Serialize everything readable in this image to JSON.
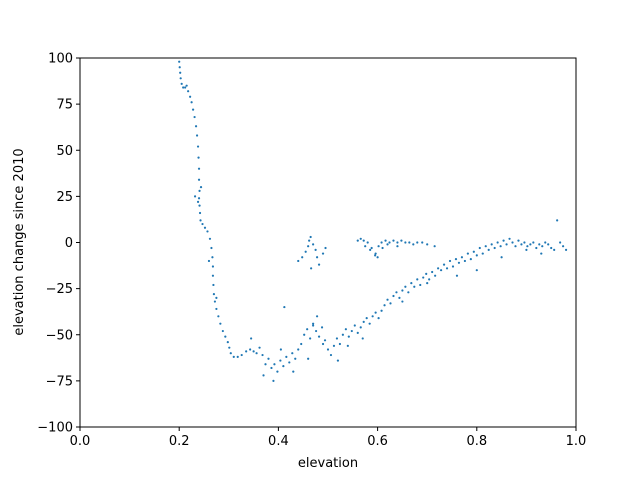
{
  "chart_data": {
    "type": "scatter",
    "title": "",
    "xlabel": "elevation",
    "ylabel": "elevation change since 2010",
    "xlim": [
      0.0,
      1.0
    ],
    "ylim": [
      -100,
      100
    ],
    "xticks": [
      "0.0",
      "0.2",
      "0.4",
      "0.6",
      "0.8",
      "1.0"
    ],
    "yticks": [
      "−100",
      "−75",
      "−50",
      "−25",
      "0",
      "25",
      "50",
      "75",
      "100"
    ],
    "grid": false,
    "legend": "none",
    "marker_color": "#1f77b4",
    "series": [
      {
        "points": [
          [
            0.2,
            98
          ],
          [
            0.201,
            95
          ],
          [
            0.202,
            92
          ],
          [
            0.203,
            89
          ],
          [
            0.205,
            86
          ],
          [
            0.208,
            84
          ],
          [
            0.212,
            84
          ],
          [
            0.215,
            85
          ],
          [
            0.218,
            82
          ],
          [
            0.222,
            79
          ],
          [
            0.225,
            76
          ],
          [
            0.228,
            72
          ],
          [
            0.231,
            68
          ],
          [
            0.234,
            63
          ],
          [
            0.236,
            58
          ],
          [
            0.238,
            52
          ],
          [
            0.239,
            46
          ],
          [
            0.24,
            40
          ],
          [
            0.24,
            34
          ],
          [
            0.241,
            28
          ],
          [
            0.24,
            24
          ],
          [
            0.241,
            20
          ],
          [
            0.242,
            16
          ],
          [
            0.243,
            12
          ],
          [
            0.247,
            10
          ],
          [
            0.252,
            8
          ],
          [
            0.257,
            6
          ],
          [
            0.262,
            2
          ],
          [
            0.265,
            -3
          ],
          [
            0.267,
            -8
          ],
          [
            0.268,
            -13
          ],
          [
            0.268,
            -18
          ],
          [
            0.269,
            -23
          ],
          [
            0.27,
            -28
          ],
          [
            0.272,
            -32
          ],
          [
            0.275,
            -36
          ],
          [
            0.279,
            -40
          ],
          [
            0.283,
            -44
          ],
          [
            0.288,
            -48
          ],
          [
            0.293,
            -51
          ],
          [
            0.298,
            -54
          ],
          [
            0.301,
            -57
          ],
          [
            0.304,
            -60
          ],
          [
            0.31,
            -62
          ],
          [
            0.318,
            -62
          ],
          [
            0.326,
            -61
          ],
          [
            0.335,
            -59
          ],
          [
            0.343,
            -58
          ],
          [
            0.35,
            -59
          ],
          [
            0.356,
            -60
          ],
          [
            0.362,
            -57
          ],
          [
            0.368,
            -61
          ],
          [
            0.374,
            -66
          ],
          [
            0.38,
            -63
          ],
          [
            0.386,
            -68
          ],
          [
            0.392,
            -66
          ],
          [
            0.398,
            -70
          ],
          [
            0.404,
            -64
          ],
          [
            0.41,
            -67
          ],
          [
            0.416,
            -62
          ],
          [
            0.422,
            -65
          ],
          [
            0.428,
            -60
          ],
          [
            0.434,
            -63
          ],
          [
            0.44,
            -58
          ],
          [
            0.446,
            -55
          ],
          [
            0.452,
            -50
          ],
          [
            0.458,
            -47
          ],
          [
            0.464,
            -52
          ],
          [
            0.47,
            -44
          ],
          [
            0.476,
            -48
          ],
          [
            0.482,
            -51
          ],
          [
            0.488,
            -46
          ],
          [
            0.494,
            -53
          ],
          [
            0.5,
            -58
          ],
          [
            0.506,
            -61
          ],
          [
            0.512,
            -56
          ],
          [
            0.518,
            -52
          ],
          [
            0.524,
            -55
          ],
          [
            0.53,
            -50
          ],
          [
            0.536,
            -47
          ],
          [
            0.542,
            -51
          ],
          [
            0.548,
            -48
          ],
          [
            0.554,
            -45
          ],
          [
            0.56,
            -49
          ],
          [
            0.566,
            -46
          ],
          [
            0.572,
            -43
          ],
          [
            0.578,
            -41
          ],
          [
            0.584,
            -44
          ],
          [
            0.59,
            -40
          ],
          [
            0.596,
            -38
          ],
          [
            0.602,
            -41
          ],
          [
            0.608,
            -37
          ],
          [
            0.614,
            -34
          ],
          [
            0.62,
            -31
          ],
          [
            0.626,
            -33
          ],
          [
            0.632,
            -29
          ],
          [
            0.638,
            -27
          ],
          [
            0.644,
            -30
          ],
          [
            0.65,
            -26
          ],
          [
            0.656,
            -24
          ],
          [
            0.662,
            -27
          ],
          [
            0.668,
            -22
          ],
          [
            0.674,
            -24
          ],
          [
            0.68,
            -20
          ],
          [
            0.686,
            -23
          ],
          [
            0.692,
            -19
          ],
          [
            0.698,
            -17
          ],
          [
            0.704,
            -20
          ],
          [
            0.71,
            -16
          ],
          [
            0.716,
            -18
          ],
          [
            0.722,
            -14
          ],
          [
            0.728,
            -15
          ],
          [
            0.734,
            -12
          ],
          [
            0.74,
            -14
          ],
          [
            0.746,
            -10
          ],
          [
            0.752,
            -13
          ],
          [
            0.758,
            -9
          ],
          [
            0.764,
            -11
          ],
          [
            0.77,
            -8
          ],
          [
            0.776,
            -10
          ],
          [
            0.782,
            -6
          ],
          [
            0.788,
            -9
          ],
          [
            0.794,
            -5
          ],
          [
            0.8,
            -7
          ],
          [
            0.806,
            -3
          ],
          [
            0.812,
            -6
          ],
          [
            0.818,
            -2
          ],
          [
            0.824,
            -4
          ],
          [
            0.83,
            -1
          ],
          [
            0.836,
            -3
          ],
          [
            0.842,
            0
          ],
          [
            0.848,
            -2
          ],
          [
            0.854,
            1
          ],
          [
            0.86,
            -1
          ],
          [
            0.866,
            2
          ],
          [
            0.872,
            0
          ],
          [
            0.878,
            -2
          ],
          [
            0.884,
            1
          ],
          [
            0.89,
            -1
          ],
          [
            0.896,
            0
          ],
          [
            0.902,
            -2
          ],
          [
            0.908,
            -1
          ],
          [
            0.914,
            0
          ],
          [
            0.92,
            -3
          ],
          [
            0.926,
            -1
          ],
          [
            0.932,
            -2
          ],
          [
            0.938,
            0
          ],
          [
            0.944,
            -1
          ],
          [
            0.95,
            -3
          ],
          [
            0.956,
            -4
          ],
          [
            0.962,
            12
          ],
          [
            0.968,
            0
          ],
          [
            0.974,
            -2
          ],
          [
            0.98,
            -4
          ],
          [
            0.232,
            25
          ],
          [
            0.244,
            30
          ],
          [
            0.238,
            22
          ],
          [
            0.26,
            -10
          ],
          [
            0.275,
            -30
          ],
          [
            0.345,
            -52
          ],
          [
            0.37,
            -72
          ],
          [
            0.39,
            -75
          ],
          [
            0.405,
            -58
          ],
          [
            0.412,
            -35
          ],
          [
            0.43,
            -70
          ],
          [
            0.46,
            -63
          ],
          [
            0.478,
            -40
          ],
          [
            0.52,
            -64
          ],
          [
            0.47,
            -45
          ],
          [
            0.49,
            -55
          ],
          [
            0.54,
            -56
          ],
          [
            0.57,
            -52
          ],
          [
            0.65,
            -32
          ],
          [
            0.7,
            -22
          ],
          [
            0.76,
            -18
          ],
          [
            0.8,
            -15
          ],
          [
            0.85,
            -8
          ],
          [
            0.9,
            -4
          ],
          [
            0.93,
            -6
          ],
          [
            0.44,
            -10
          ],
          [
            0.448,
            -8
          ],
          [
            0.455,
            -5
          ],
          [
            0.46,
            -2
          ],
          [
            0.462,
            1
          ],
          [
            0.465,
            3
          ],
          [
            0.47,
            -1
          ],
          [
            0.475,
            -4
          ],
          [
            0.478,
            -8
          ],
          [
            0.482,
            -12
          ],
          [
            0.466,
            -14
          ],
          [
            0.49,
            -6
          ],
          [
            0.495,
            -3
          ],
          [
            0.56,
            1
          ],
          [
            0.566,
            2
          ],
          [
            0.572,
            1
          ],
          [
            0.58,
            0
          ],
          [
            0.588,
            -3
          ],
          [
            0.596,
            -6
          ],
          [
            0.602,
            -2
          ],
          [
            0.608,
            0
          ],
          [
            0.616,
            1
          ],
          [
            0.624,
            0
          ],
          [
            0.632,
            1
          ],
          [
            0.64,
            0
          ],
          [
            0.648,
            1
          ],
          [
            0.656,
            0
          ],
          [
            0.664,
            0
          ],
          [
            0.672,
            -1
          ],
          [
            0.68,
            0
          ],
          [
            0.69,
            0
          ],
          [
            0.7,
            -1
          ],
          [
            0.715,
            -2
          ],
          [
            0.585,
            -4
          ],
          [
            0.595,
            -7
          ],
          [
            0.61,
            -3
          ],
          [
            0.6,
            -8
          ],
          [
            0.62,
            -1
          ],
          [
            0.575,
            -2
          ],
          [
            0.64,
            -2
          ]
        ]
      }
    ]
  }
}
